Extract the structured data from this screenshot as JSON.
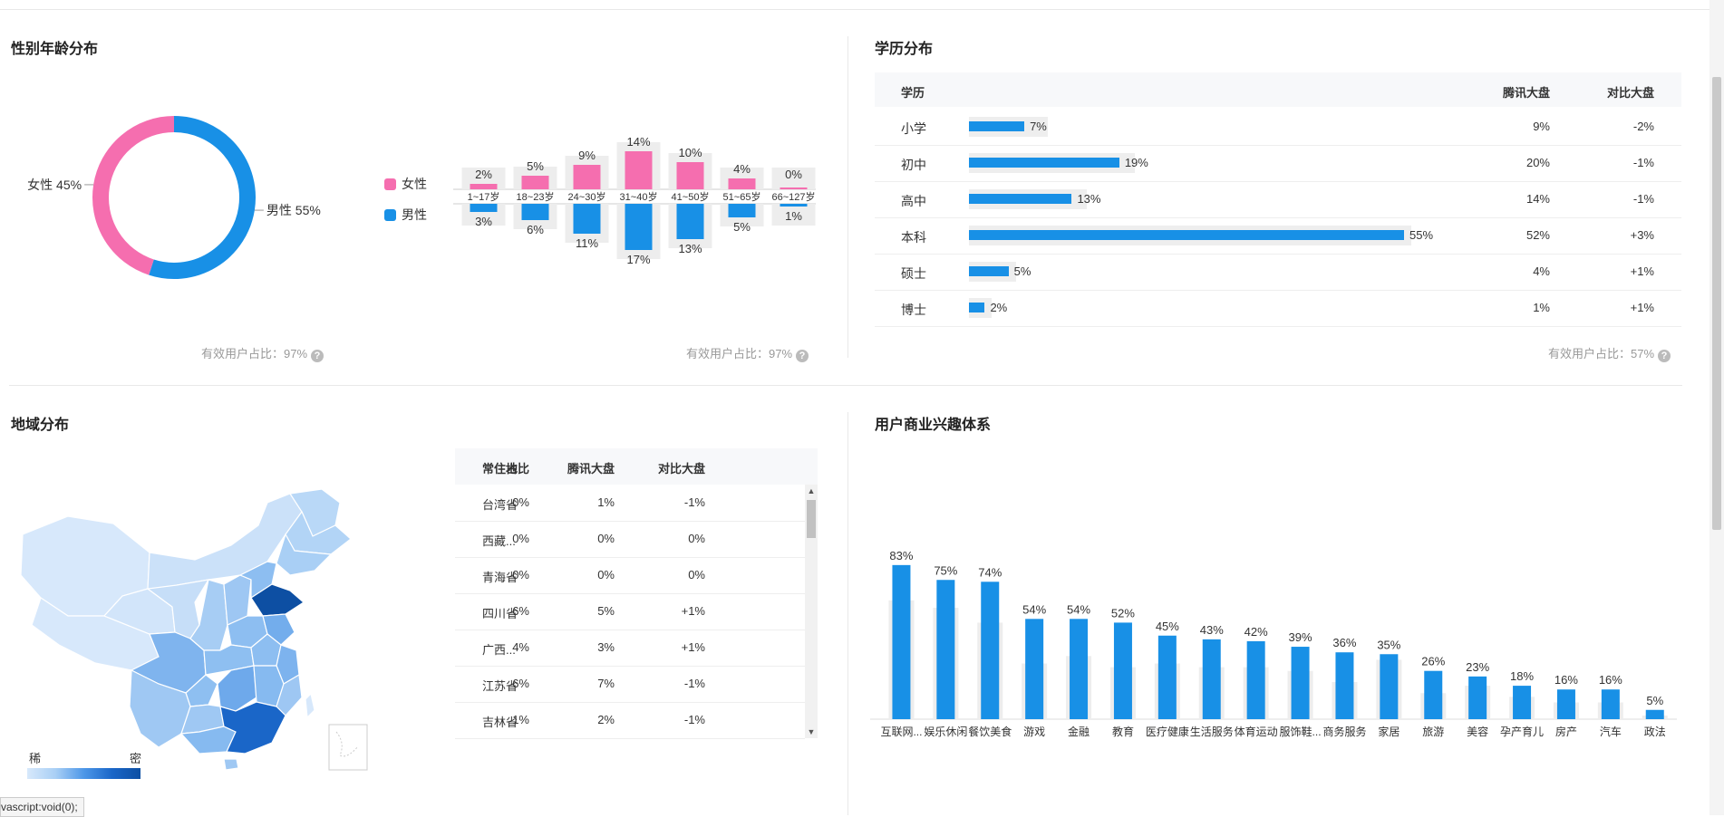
{
  "sections": {
    "gender_age": "性别年龄分布",
    "education": "学历分布",
    "region": "地域分布",
    "interest": "用户商业兴趣体系"
  },
  "notes": {
    "gender_valid": "有效用户占比：97%",
    "age_valid": "有效用户占比：97%",
    "edu_valid": "有效用户占比：57%"
  },
  "gender_legend": {
    "female": "女性",
    "male": "男性"
  },
  "education_table": {
    "headers": [
      "学历",
      "腾讯大盘",
      "对比大盘"
    ],
    "rows": [
      {
        "name": "小学",
        "pct": "7%",
        "tencent": "9%",
        "diff": "-2%"
      },
      {
        "name": "初中",
        "pct": "19%",
        "tencent": "20%",
        "diff": "-1%"
      },
      {
        "name": "高中",
        "pct": "13%",
        "tencent": "14%",
        "diff": "-1%"
      },
      {
        "name": "本科",
        "pct": "55%",
        "tencent": "52%",
        "diff": "+3%"
      },
      {
        "name": "硕士",
        "pct": "5%",
        "tencent": "4%",
        "diff": "+1%"
      },
      {
        "name": "博士",
        "pct": "2%",
        "tencent": "1%",
        "diff": "+1%"
      }
    ]
  },
  "region_table": {
    "headers": [
      "常住地",
      "占比",
      "腾讯大盘",
      "对比大盘"
    ],
    "rows": [
      [
        "台湾省",
        "0%",
        "1%",
        "-1%"
      ],
      [
        "西藏...",
        "0%",
        "0%",
        "0%"
      ],
      [
        "青海省",
        "0%",
        "0%",
        "0%"
      ],
      [
        "四川省",
        "6%",
        "5%",
        "+1%"
      ],
      [
        "广西...",
        "4%",
        "3%",
        "+1%"
      ],
      [
        "江苏省",
        "6%",
        "7%",
        "-1%"
      ],
      [
        "吉林省",
        "1%",
        "2%",
        "-1%"
      ]
    ]
  },
  "map_legend": {
    "low": "稀",
    "high": "密"
  },
  "status_tip": "vascript:void(0);",
  "colors": {
    "female": "#f56eaf",
    "male": "#1890e6",
    "track": "#ededed",
    "map_dark": "#0d4fa3",
    "map_light": "#d7e8fb"
  },
  "chart_data": [
    {
      "type": "pie",
      "slices": [
        {
          "label": "女性 45%",
          "value": 45
        },
        {
          "label": "男性 55%",
          "value": 55
        }
      ]
    },
    {
      "type": "bar",
      "categories": [
        "1~17岁",
        "18~23岁",
        "24~30岁",
        "31~40岁",
        "41~50岁",
        "51~65岁",
        "66~127岁"
      ],
      "series": [
        {
          "name": "女性",
          "values": [
            2,
            5,
            9,
            14,
            10,
            4,
            0
          ],
          "labels": [
            "2%",
            "5%",
            "9%",
            "14%",
            "10%",
            "4%",
            "0%"
          ]
        },
        {
          "name": "男性",
          "values": [
            3,
            6,
            11,
            17,
            13,
            5,
            1
          ],
          "labels": [
            "3%",
            "6%",
            "11%",
            "17%",
            "13%",
            "5%",
            "1%"
          ]
        }
      ]
    },
    {
      "type": "bar",
      "categories": [
        "小学",
        "初中",
        "高中",
        "本科",
        "硕士",
        "博士"
      ],
      "values": [
        7,
        19,
        13,
        55,
        5,
        2
      ],
      "baseline": [
        9,
        20,
        14,
        52,
        4,
        1
      ]
    },
    {
      "type": "bar",
      "categories": [
        "互联网...",
        "娱乐休闲",
        "餐饮美食",
        "游戏",
        "金融",
        "教育",
        "医疗健康",
        "生活服务",
        "体育运动",
        "服饰鞋...",
        "商务服务",
        "家居",
        "旅游",
        "美容",
        "孕产育儿",
        "房产",
        "汽车",
        "政法"
      ],
      "values": [
        83,
        75,
        74,
        54,
        54,
        52,
        45,
        43,
        42,
        39,
        36,
        35,
        26,
        23,
        18,
        16,
        16,
        5
      ],
      "labels": [
        "83%",
        "75%",
        "74%",
        "54%",
        "54%",
        "52%",
        "45%",
        "43%",
        "42%",
        "39%",
        "36%",
        "35%",
        "26%",
        "23%",
        "18%",
        "16%",
        "16%",
        "5%"
      ],
      "baseline": [
        64,
        60,
        52,
        30,
        34,
        28,
        30,
        28,
        28,
        26,
        20,
        32,
        14,
        18,
        12,
        9,
        9,
        2
      ]
    }
  ]
}
